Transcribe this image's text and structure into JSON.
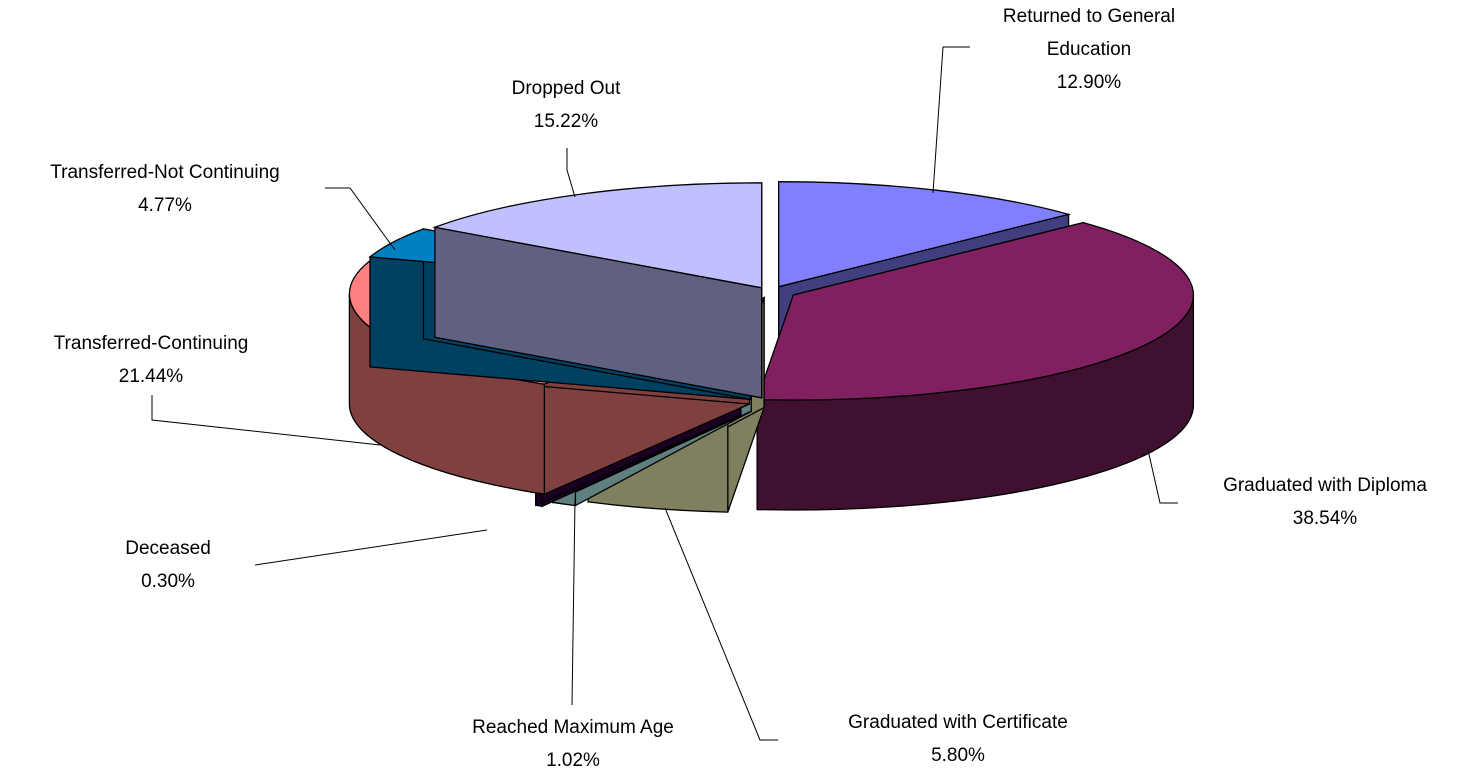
{
  "chart_data": {
    "type": "pie",
    "categories": [
      "Returned to General Education",
      "Graduated with Diploma",
      "Graduated with Certificate",
      "Reached Maximum Age",
      "Deceased",
      "Transferred-Continuing",
      "Transferred-Not Continuing",
      "Dropped Out"
    ],
    "values": [
      12.9,
      38.54,
      5.8,
      1.02,
      0.3,
      21.44,
      4.77,
      15.22
    ],
    "value_labels": [
      "12.90%",
      "38.54%",
      "5.80%",
      "1.02%",
      "0.30%",
      "21.44%",
      "4.77%",
      "15.22%"
    ],
    "colors": [
      "#8080ff",
      "#802060",
      "#ffffc0",
      "#c0ffff",
      "#330044",
      "#ff8080",
      "#0080c0",
      "#c0c0ff"
    ]
  }
}
